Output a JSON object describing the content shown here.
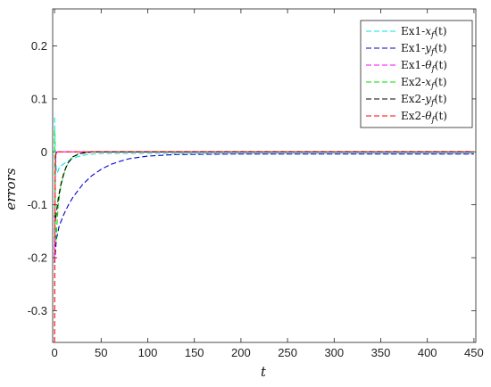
{
  "chart_data": {
    "type": "line",
    "xlabel": "t",
    "ylabel": "errors",
    "xlim": [
      -2,
      452
    ],
    "ylim": [
      -0.36,
      0.27
    ],
    "xticks": [
      0,
      50,
      100,
      150,
      200,
      250,
      300,
      350,
      400,
      450
    ],
    "yticks": [
      0.2,
      0.1,
      0,
      -0.1,
      -0.2,
      -0.3
    ],
    "xtick_labels": [
      "0",
      "50",
      "100",
      "150",
      "200",
      "250",
      "300",
      "350",
      "400",
      "450"
    ],
    "ytick_labels": [
      "0.2",
      "0.1",
      "0",
      "-0.1",
      "-0.2",
      "-0.3"
    ],
    "grid": false,
    "legend_position": "top-right",
    "series": [
      {
        "name": "Ex1-x_f(t)",
        "label_prefix": "Ex1-",
        "label_var": "x",
        "label_sub": "f",
        "label_suffix": "(t)",
        "color": "#00e5e5",
        "dash": "dashed",
        "x": [
          0,
          0.3,
          1,
          2,
          3,
          5,
          8,
          12,
          18,
          25,
          35,
          50,
          100,
          200,
          450
        ],
        "y": [
          0.065,
          0.04,
          -0.01,
          -0.035,
          -0.04,
          -0.03,
          -0.025,
          -0.02,
          -0.014,
          -0.009,
          -0.005,
          -0.003,
          -0.003,
          -0.003,
          -0.003
        ]
      },
      {
        "name": "Ex1-y_f(t)",
        "label_prefix": "Ex1-",
        "label_var": "y",
        "label_sub": "f",
        "label_suffix": "(t)",
        "color": "#0000cc",
        "dash": "dashed",
        "x": [
          0,
          2,
          5,
          10,
          15,
          20,
          30,
          40,
          50,
          60,
          70,
          80,
          100,
          130,
          200,
          450
        ],
        "y": [
          -0.21,
          -0.165,
          -0.14,
          -0.118,
          -0.1,
          -0.085,
          -0.062,
          -0.045,
          -0.033,
          -0.024,
          -0.018,
          -0.013,
          -0.008,
          -0.005,
          -0.004,
          -0.004
        ]
      },
      {
        "name": "Ex1-θ_f(t)",
        "label_prefix": "Ex1-",
        "label_var": "θ",
        "label_sub": "f",
        "label_suffix": "(t)",
        "color": "#ff00ff",
        "dash": "dashed",
        "x": [
          0,
          0.3,
          0.8,
          1.5,
          3,
          450
        ],
        "y": [
          -0.2,
          -0.12,
          -0.04,
          -0.005,
          0,
          0
        ]
      },
      {
        "name": "Ex2-x_f(t)",
        "label_prefix": "Ex2-",
        "label_var": "x",
        "label_sub": "f",
        "label_suffix": "(t)",
        "color": "#00dd00",
        "dash": "dashed",
        "x": [
          0,
          0.4,
          0.8,
          1.5,
          2.5,
          4,
          7,
          12,
          18,
          25,
          40,
          450
        ],
        "y": [
          0.04,
          -0.06,
          -0.14,
          -0.17,
          -0.14,
          -0.1,
          -0.062,
          -0.03,
          -0.012,
          -0.004,
          0,
          0
        ]
      },
      {
        "name": "Ex2-y_f(t)",
        "label_prefix": "Ex2-",
        "label_var": "y",
        "label_sub": "f",
        "label_suffix": "(t)",
        "color": "#000000",
        "dash": "dashed",
        "x": [
          0,
          1,
          2,
          4,
          7,
          10,
          14,
          20,
          28,
          40,
          450
        ],
        "y": [
          -0.12,
          -0.13,
          -0.115,
          -0.088,
          -0.06,
          -0.04,
          -0.022,
          -0.009,
          -0.003,
          0,
          0
        ]
      },
      {
        "name": "Ex2-θ_f(t)",
        "label_prefix": "Ex2-",
        "label_var": "θ",
        "label_sub": "f",
        "label_suffix": "(t)",
        "color": "#ff0000",
        "dash": "dashed",
        "x": [
          0,
          0.3,
          0.6,
          1,
          2,
          450
        ],
        "y": [
          -0.36,
          -0.2,
          -0.06,
          -0.01,
          0,
          0
        ]
      }
    ]
  }
}
